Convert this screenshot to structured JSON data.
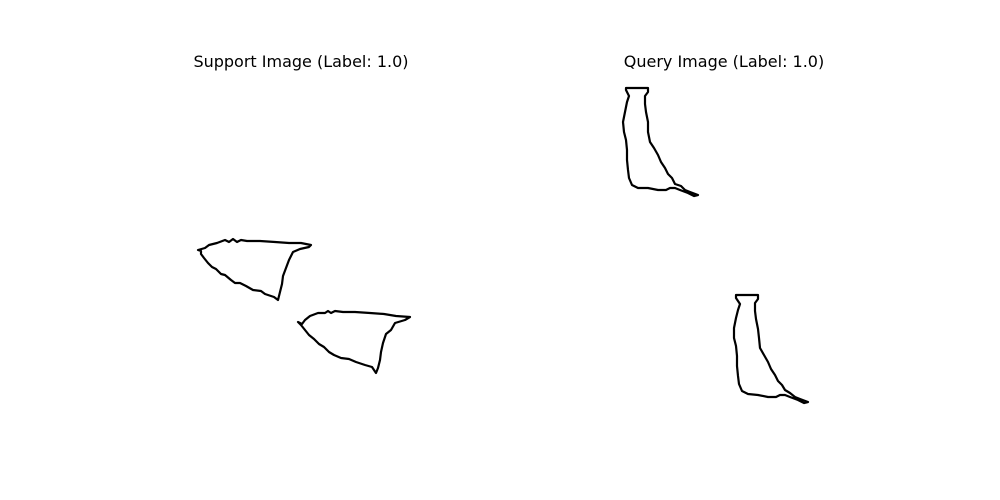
{
  "support": {
    "title": "Support Image (Label: 1.0)",
    "shape_count": 2
  },
  "query": {
    "title": "Query Image (Label: 1.0)",
    "shape_count": 2
  },
  "colors": {
    "background": "#ffffff",
    "stroke": "#000000"
  }
}
